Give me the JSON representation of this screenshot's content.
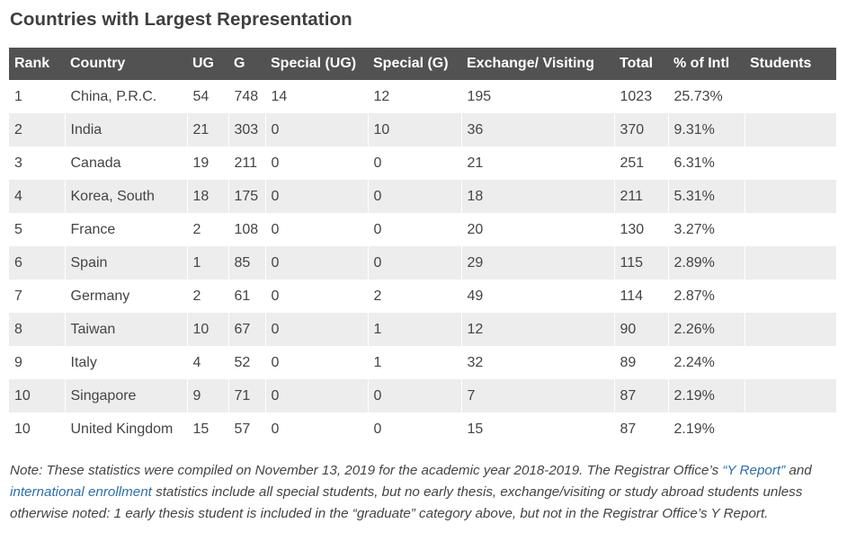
{
  "title": "Countries with Largest Representation",
  "table": {
    "headers": [
      "Rank",
      "Country",
      "UG",
      "G",
      "Special (UG)",
      "Special (G)",
      "Exchange/ Visiting",
      "Total",
      "% of Intl",
      "Students"
    ],
    "rows": [
      [
        "1",
        "China, P.R.C.",
        "54",
        "748",
        "14",
        "12",
        "195",
        "1023",
        "25.73%"
      ],
      [
        "2",
        "India",
        "21",
        "303",
        "0",
        "10",
        "36",
        "370",
        "9.31%"
      ],
      [
        "3",
        "Canada",
        "19",
        "211",
        "0",
        "0",
        "21",
        "251",
        "6.31%"
      ],
      [
        "4",
        "Korea, South",
        "18",
        "175",
        "0",
        "0",
        "18",
        "211",
        "5.31%"
      ],
      [
        "5",
        "France",
        "2",
        "108",
        "0",
        "0",
        "20",
        "130",
        "3.27%"
      ],
      [
        "6",
        "Spain",
        "1",
        "85",
        "0",
        "0",
        "29",
        "115",
        "2.89%"
      ],
      [
        "7",
        "Germany",
        "2",
        "61",
        "0",
        "2",
        "49",
        "114",
        "2.87%"
      ],
      [
        "8",
        "Taiwan",
        "10",
        "67",
        "0",
        "1",
        "12",
        "90",
        "2.26%"
      ],
      [
        "9",
        "Italy",
        "4",
        "52",
        "0",
        "1",
        "32",
        "89",
        "2.24%"
      ],
      [
        "10",
        "Singapore",
        "9",
        "71",
        "0",
        "0",
        "7",
        "87",
        "2.19%"
      ],
      [
        "10",
        "United Kingdom",
        "15",
        "57",
        "0",
        "0",
        "15",
        "87",
        "2.19%"
      ]
    ]
  },
  "note": {
    "part1": "Note: These statistics were compiled on November 13, 2019 for the academic year 2018-2019. The Registrar Office’s ",
    "link1": "“Y Report”",
    "part2": " and ",
    "link2": "international enrollment",
    "part3": " statistics include all special students, but no early thesis, exchange/visiting or study abroad students unless otherwise noted: 1 early thesis student is included in the “graduate” category above, but not in the Registrar Office’s Y Report."
  },
  "colors": {
    "header_bg": "#525252",
    "row_alt_bg": "#ededed",
    "link": "#2f6fa7"
  }
}
